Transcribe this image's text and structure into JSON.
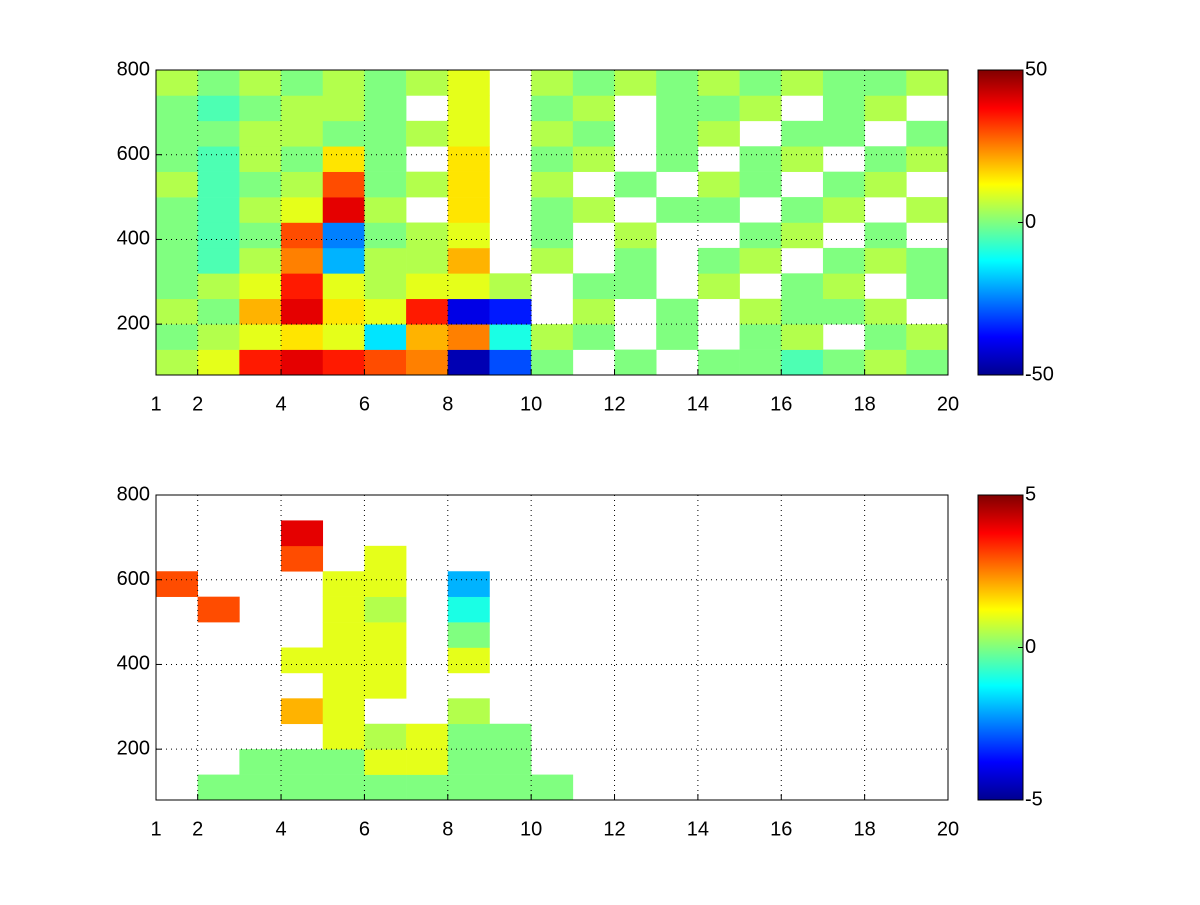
{
  "chart_data": [
    {
      "type": "heatmap",
      "colormap": "jet",
      "grid": true,
      "xbins": [
        1,
        2,
        3,
        4,
        5,
        6,
        7,
        8,
        9,
        10,
        11,
        12,
        13,
        14,
        15,
        16,
        17,
        18,
        19,
        20
      ],
      "ybins": [
        80,
        140,
        200,
        260,
        320,
        380,
        440,
        500,
        560,
        620,
        680,
        740,
        800
      ],
      "xlim": [
        1,
        20
      ],
      "xticks": [
        1,
        2,
        4,
        6,
        8,
        10,
        12,
        14,
        16,
        18,
        20
      ],
      "ylim": [
        80,
        800
      ],
      "yticks": [
        200,
        400,
        600,
        800
      ],
      "clim": [
        -50,
        50
      ],
      "cticks": [
        -50,
        0,
        50
      ],
      "values": [
        [
          5,
          10,
          35,
          40,
          35,
          30,
          25,
          -45,
          -30,
          0,
          null,
          0,
          null,
          0,
          0,
          -5,
          0,
          5,
          0
        ],
        [
          0,
          5,
          10,
          15,
          10,
          -15,
          20,
          25,
          -10,
          5,
          0,
          null,
          0,
          null,
          0,
          5,
          null,
          0,
          5
        ],
        [
          5,
          0,
          20,
          40,
          15,
          10,
          35,
          -40,
          -35,
          null,
          5,
          null,
          0,
          null,
          5,
          0,
          0,
          5,
          null
        ],
        [
          0,
          5,
          10,
          35,
          10,
          5,
          10,
          10,
          5,
          null,
          0,
          0,
          null,
          5,
          null,
          0,
          5,
          null,
          0
        ],
        [
          0,
          -5,
          5,
          25,
          -20,
          5,
          5,
          20,
          null,
          5,
          null,
          0,
          null,
          0,
          5,
          null,
          0,
          5,
          0
        ],
        [
          0,
          -5,
          0,
          30,
          -25,
          0,
          5,
          10,
          null,
          0,
          null,
          5,
          null,
          null,
          0,
          5,
          null,
          0,
          null
        ],
        [
          0,
          -5,
          5,
          10,
          40,
          5,
          null,
          15,
          null,
          0,
          5,
          null,
          0,
          0,
          null,
          0,
          5,
          null,
          5
        ],
        [
          5,
          -5,
          0,
          5,
          30,
          0,
          5,
          15,
          null,
          5,
          null,
          0,
          null,
          5,
          0,
          null,
          0,
          5,
          null
        ],
        [
          0,
          -5,
          5,
          0,
          15,
          0,
          null,
          15,
          null,
          0,
          5,
          null,
          0,
          null,
          0,
          5,
          null,
          0,
          5
        ],
        [
          0,
          0,
          5,
          5,
          0,
          0,
          5,
          10,
          null,
          5,
          0,
          null,
          0,
          5,
          null,
          0,
          0,
          null,
          0
        ],
        [
          0,
          -5,
          0,
          5,
          5,
          0,
          null,
          10,
          null,
          0,
          5,
          null,
          0,
          0,
          5,
          null,
          0,
          5,
          null
        ],
        [
          5,
          0,
          5,
          0,
          5,
          0,
          5,
          10,
          null,
          5,
          0,
          5,
          0,
          5,
          0,
          5,
          0,
          0,
          5
        ]
      ]
    },
    {
      "type": "heatmap",
      "colormap": "jet",
      "grid": true,
      "xbins": [
        1,
        2,
        3,
        4,
        5,
        6,
        7,
        8,
        9,
        10,
        11,
        12,
        13,
        14,
        15,
        16,
        17,
        18,
        19,
        20
      ],
      "ybins": [
        80,
        140,
        200,
        260,
        320,
        380,
        440,
        500,
        560,
        620,
        680,
        740,
        800
      ],
      "xlim": [
        1,
        20
      ],
      "xticks": [
        1,
        2,
        4,
        6,
        8,
        10,
        12,
        14,
        16,
        18,
        20
      ],
      "ylim": [
        80,
        800
      ],
      "yticks": [
        200,
        400,
        600,
        800
      ],
      "clim": [
        -5,
        5
      ],
      "cticks": [
        -5,
        0,
        5
      ],
      "values": [
        [
          null,
          0,
          0,
          0,
          0,
          0,
          0,
          0,
          0,
          0,
          null,
          null,
          null,
          null,
          null,
          null,
          null,
          null,
          null
        ],
        [
          null,
          null,
          0,
          0,
          0,
          1,
          1,
          0,
          0,
          null,
          null,
          null,
          null,
          null,
          null,
          null,
          null,
          null,
          null
        ],
        [
          null,
          null,
          null,
          null,
          1,
          0.5,
          1,
          0,
          0,
          null,
          null,
          null,
          null,
          null,
          null,
          null,
          null,
          null,
          null
        ],
        [
          null,
          null,
          null,
          2,
          1,
          null,
          null,
          0.5,
          null,
          null,
          null,
          null,
          null,
          null,
          null,
          null,
          null,
          null,
          null
        ],
        [
          null,
          null,
          null,
          null,
          1,
          1,
          null,
          null,
          null,
          null,
          null,
          null,
          null,
          null,
          null,
          null,
          null,
          null,
          null
        ],
        [
          null,
          null,
          null,
          1,
          1,
          1,
          null,
          1,
          null,
          null,
          null,
          null,
          null,
          null,
          null,
          null,
          null,
          null,
          null
        ],
        [
          null,
          null,
          null,
          null,
          1,
          1,
          null,
          0,
          null,
          null,
          null,
          null,
          null,
          null,
          null,
          null,
          null,
          null,
          null
        ],
        [
          null,
          3,
          null,
          null,
          1,
          0.5,
          null,
          -1,
          null,
          null,
          null,
          null,
          null,
          null,
          null,
          null,
          null,
          null,
          null
        ],
        [
          3,
          null,
          null,
          null,
          1,
          1,
          null,
          -2,
          null,
          null,
          null,
          null,
          null,
          null,
          null,
          null,
          null,
          null,
          null
        ],
        [
          null,
          null,
          null,
          3,
          null,
          1,
          null,
          null,
          null,
          null,
          null,
          null,
          null,
          null,
          null,
          null,
          null,
          null,
          null
        ],
        [
          null,
          null,
          null,
          4,
          null,
          null,
          null,
          null,
          null,
          null,
          null,
          null,
          null,
          null,
          null,
          null,
          null,
          null,
          null
        ],
        [
          null,
          null,
          null,
          null,
          null,
          null,
          null,
          null,
          null,
          null,
          null,
          null,
          null,
          null,
          null,
          null,
          null,
          null,
          null
        ]
      ]
    }
  ]
}
